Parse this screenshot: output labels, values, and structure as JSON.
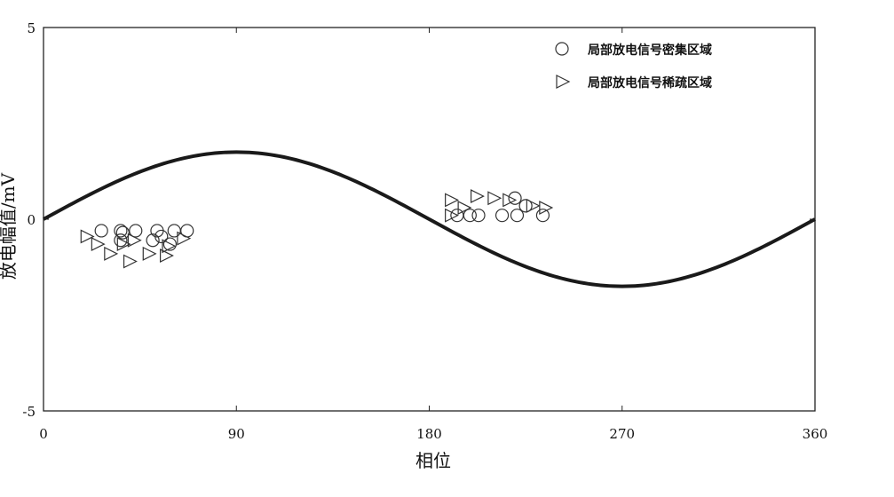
{
  "chart_data": {
    "type": "scatter",
    "title": "",
    "xlabel": "相位",
    "ylabel": "放电幅值/mV",
    "xlim": [
      0,
      360
    ],
    "ylim": [
      -5,
      5
    ],
    "xticks": [
      "0",
      "90",
      "180",
      "270",
      "360"
    ],
    "yticks": [
      "5",
      "0",
      "-5"
    ],
    "grid": false,
    "legend_position": "top-right",
    "curve": {
      "amplitude": 1.75,
      "phase_start": 0,
      "phase_end": 360
    },
    "series": [
      {
        "name": "局部放电信号密集区域",
        "marker": "circle",
        "points": [
          [
            27,
            -0.3
          ],
          [
            36,
            -0.3
          ],
          [
            37,
            -0.35
          ],
          [
            43,
            -0.3
          ],
          [
            53,
            -0.3
          ],
          [
            61,
            -0.3
          ],
          [
            67,
            -0.3
          ],
          [
            36,
            -0.55
          ],
          [
            51,
            -0.55
          ],
          [
            59,
            -0.65
          ],
          [
            55,
            -0.45
          ],
          [
            193,
            0.1
          ],
          [
            199,
            0.1
          ],
          [
            203,
            0.1
          ],
          [
            214,
            0.1
          ],
          [
            221,
            0.1
          ],
          [
            233,
            0.1
          ],
          [
            220,
            0.55
          ],
          [
            225,
            0.35
          ]
        ]
      },
      {
        "name": "局部放电信号稀疏区域",
        "marker": "triangle-right",
        "points": [
          [
            20,
            -0.45
          ],
          [
            25,
            -0.65
          ],
          [
            31,
            -0.9
          ],
          [
            37,
            -0.65
          ],
          [
            42,
            -0.55
          ],
          [
            40,
            -1.1
          ],
          [
            49,
            -0.9
          ],
          [
            58,
            -0.7
          ],
          [
            65,
            -0.5
          ],
          [
            57,
            -0.95
          ],
          [
            190,
            0.5
          ],
          [
            196,
            0.3
          ],
          [
            202,
            0.6
          ],
          [
            210,
            0.55
          ],
          [
            217,
            0.5
          ],
          [
            228,
            0.35
          ],
          [
            234,
            0.3
          ],
          [
            190,
            0.1
          ]
        ]
      }
    ]
  }
}
